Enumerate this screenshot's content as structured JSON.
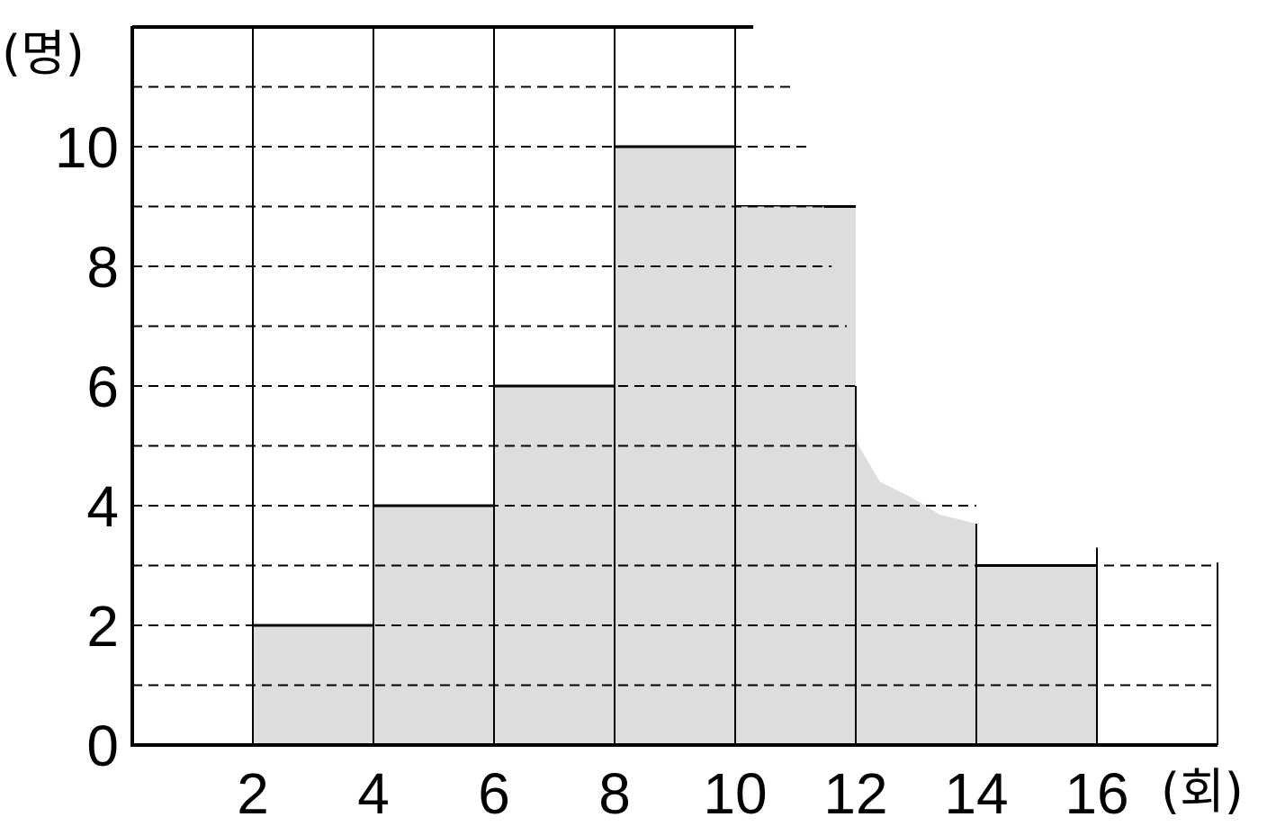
{
  "chart_data": {
    "type": "bar",
    "subtype": "histogram",
    "bins": [
      {
        "start": 2,
        "end": 4,
        "value": 2
      },
      {
        "start": 4,
        "end": 6,
        "value": 4
      },
      {
        "start": 6,
        "end": 8,
        "value": 6
      },
      {
        "start": 8,
        "end": 10,
        "value": 10
      },
      {
        "start": 10,
        "end": 12,
        "value": 9
      },
      {
        "start": 12,
        "end": 14,
        "value": null
      },
      {
        "start": 14,
        "end": 16,
        "value": 3
      }
    ],
    "torn_region": {
      "from_x": 11.5,
      "to_x": 14
    },
    "xlabel": "(회)",
    "ylabel": "(명)",
    "x_ticks": [
      "2",
      "4",
      "6",
      "8",
      "10",
      "12",
      "14",
      "16"
    ],
    "y_ticks": [
      "0",
      "2",
      "4",
      "6",
      "8",
      "10"
    ],
    "xlim": [
      0,
      18
    ],
    "ylim": [
      0,
      12
    ],
    "grid": "dashed horizontal every 1",
    "colors": {
      "bar_fill": "#dcdedd",
      "line": "#000000"
    }
  }
}
